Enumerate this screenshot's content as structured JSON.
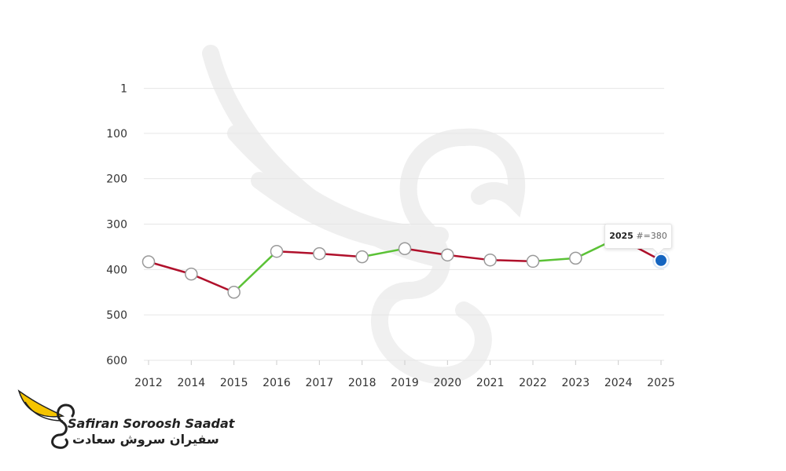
{
  "chart_data": {
    "type": "line",
    "x": [
      "2012",
      "2014",
      "2015",
      "2016",
      "2017",
      "2018",
      "2019",
      "2020",
      "2021",
      "2022",
      "2023",
      "2024",
      "2025"
    ],
    "y": [
      383,
      410,
      450,
      360,
      365,
      372,
      354,
      368,
      379,
      382,
      375,
      330,
      380
    ],
    "yticks": [
      "1",
      "100",
      "200",
      "300",
      "400",
      "500",
      "600"
    ],
    "ylim": [
      1,
      600
    ],
    "y_inverted": true,
    "grid": true,
    "color_rising": "#5bc236",
    "color_falling": "#b0102b",
    "highlight_color": "#1565c0",
    "tooltip": {
      "year": "2025",
      "label": "#=380"
    }
  },
  "logo": {
    "name_en": "Safiran Soroosh Saadat",
    "name_fa": "سفیران سروش سعادت",
    "wing_color": "#f5c400"
  }
}
